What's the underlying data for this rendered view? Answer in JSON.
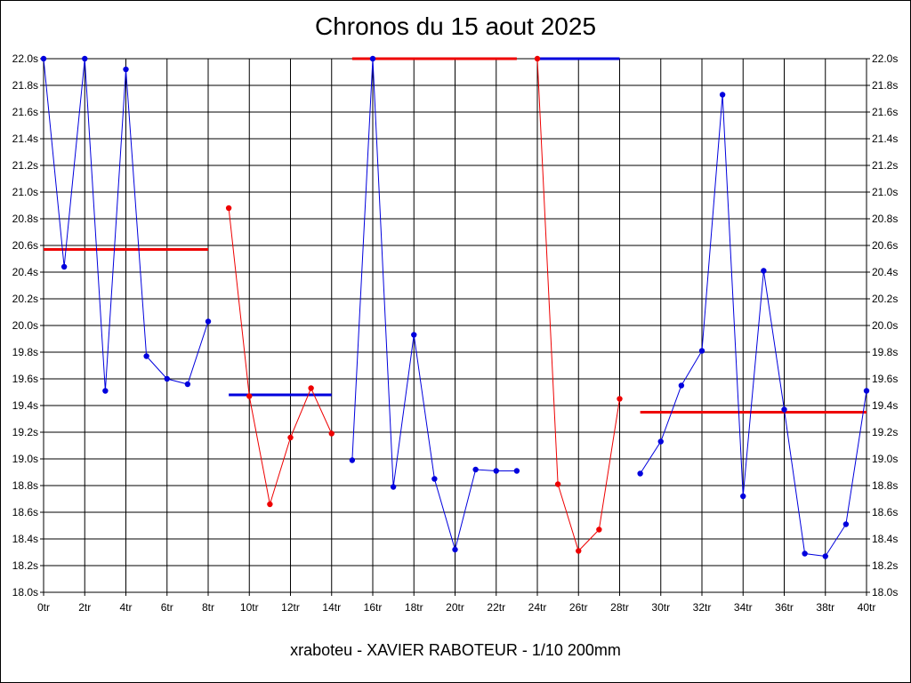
{
  "chart_data": {
    "type": "line",
    "title": "Chronos du 15 aout 2025",
    "footer": "xraboteu - XAVIER RABOTEUR - 1/10 200mm",
    "y_range": [
      18.0,
      22.0
    ],
    "y_ticks": [
      "18.0s",
      "18.2s",
      "18.4s",
      "18.6s",
      "18.8s",
      "19.0s",
      "19.2s",
      "19.4s",
      "19.6s",
      "19.8s",
      "20.0s",
      "20.2s",
      "20.4s",
      "20.6s",
      "20.8s",
      "21.0s",
      "21.2s",
      "21.4s",
      "21.6s",
      "21.8s",
      "22.0s"
    ],
    "x_range": [
      0,
      40
    ],
    "x_ticks": [
      "0tr",
      "2tr",
      "4tr",
      "6tr",
      "8tr",
      "10tr",
      "12tr",
      "14tr",
      "16tr",
      "18tr",
      "20tr",
      "22tr",
      "24tr",
      "26tr",
      "28tr",
      "30tr",
      "32tr",
      "34tr",
      "36tr",
      "38tr",
      "40tr"
    ],
    "grid": true,
    "colors": {
      "blue": "#0000dd",
      "red": "#ee0000"
    },
    "segments": [
      {
        "color": "blue",
        "x": [
          0,
          1,
          2,
          3,
          4,
          5,
          6,
          7,
          8
        ],
        "y": [
          22.0,
          20.44,
          22.0,
          19.51,
          21.92,
          19.77,
          19.6,
          19.56,
          20.03
        ]
      },
      {
        "color": "red",
        "x": [
          9,
          10,
          11,
          12,
          13,
          14
        ],
        "y": [
          20.88,
          19.47,
          18.66,
          19.16,
          19.53,
          19.19
        ]
      },
      {
        "color": "blue",
        "x": [
          15,
          16,
          17,
          18,
          19,
          20,
          21,
          22,
          23
        ],
        "y": [
          18.99,
          22.0,
          18.79,
          19.93,
          18.85,
          18.32,
          18.92,
          18.91,
          18.91
        ]
      },
      {
        "color": "red",
        "x": [
          24,
          25,
          26,
          27,
          28
        ],
        "y": [
          22.0,
          18.81,
          18.31,
          18.47,
          19.45
        ]
      },
      {
        "color": "blue",
        "x": [
          29,
          30,
          31,
          32,
          33,
          34,
          35,
          36,
          37,
          38,
          39,
          40
        ],
        "y": [
          18.89,
          19.13,
          19.55,
          19.81,
          21.73,
          18.72,
          20.41,
          19.37,
          18.29,
          18.27,
          18.51,
          19.51
        ]
      }
    ],
    "averages": [
      {
        "color": "red",
        "x": [
          0,
          8
        ],
        "y": 20.57
      },
      {
        "color": "blue",
        "x": [
          9,
          14
        ],
        "y": 19.48
      },
      {
        "color": "red",
        "x": [
          15,
          23
        ],
        "y": 22.0
      },
      {
        "color": "blue",
        "x": [
          24,
          28
        ],
        "y": 22.0
      },
      {
        "color": "red",
        "x": [
          29,
          40
        ],
        "y": 19.35
      }
    ]
  }
}
